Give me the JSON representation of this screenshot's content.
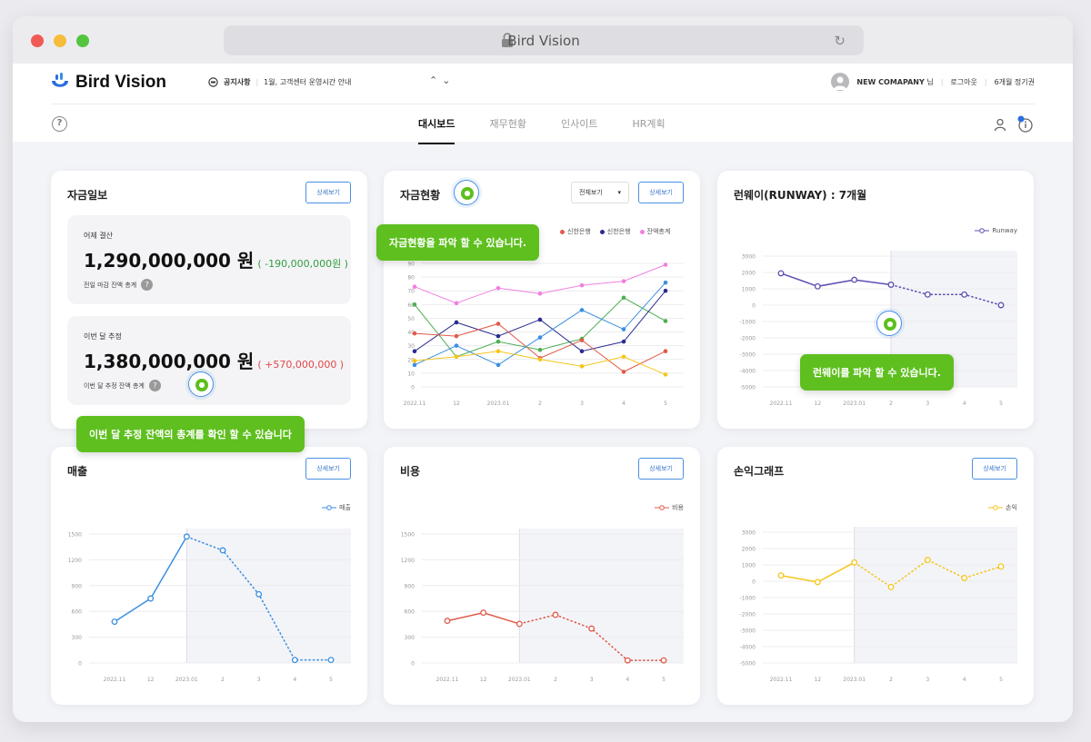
{
  "browser": {
    "url_title": "Bird Vision"
  },
  "header": {
    "logo": "Bird Vision",
    "notice_label": "공지사항",
    "notice_text": "1월, 고객센터 운영시간 안내",
    "company": "NEW COMAPANY",
    "honorific": "님",
    "logout": "로그아웃",
    "subscription": "6개월 정기권"
  },
  "tabs": [
    {
      "label": "대시보드",
      "active": true
    },
    {
      "label": "재무현황",
      "active": false
    },
    {
      "label": "인사이트",
      "active": false
    },
    {
      "label": "HR계획",
      "active": false
    }
  ],
  "colors": {
    "accent": "#4a90e2",
    "tooltip": "#5ebf1e",
    "positive": "#2e9e3f",
    "negative": "#e04848"
  },
  "detail_label": "상세보기",
  "fund_report": {
    "title": "자금일보",
    "yesterday_label": "어제 결산",
    "yesterday_value": "1,290,000,000 원",
    "yesterday_diff": "( -190,000,000원 )",
    "yesterday_sub": "전일 마감 잔액 총계",
    "month_label": "이번 달 추정",
    "month_value": "1,380,000,000 원",
    "month_diff": "( +570,000,000 )",
    "month_sub": "이번 달 추정 잔액 총계",
    "tooltip": "이번 달 추정 잔액의 총계를 확인 할 수 있습니다"
  },
  "fund_status": {
    "title": "자금현황",
    "select": "전체보기",
    "tooltip": "자금현황을 파악 할 수 있습니다.",
    "legend": [
      "신한은행",
      "신한은행",
      "잔액총계"
    ]
  },
  "runway": {
    "title": "런웨이(RUNWAY) : 7개월",
    "legend": "Runway",
    "tooltip": "런웨이를 파악 할 수 있습니다."
  },
  "sales": {
    "title": "매출",
    "legend": "매출"
  },
  "cost": {
    "title": "비용",
    "legend": "비용"
  },
  "pl": {
    "title": "손익그래프",
    "legend": "손익"
  },
  "x_labels": [
    "2022.11",
    "12",
    "2023.01",
    "2",
    "3",
    "4",
    "5"
  ],
  "chart_data": [
    {
      "id": "fund_status",
      "type": "line",
      "x": [
        "2022.11",
        "12",
        "2023.01",
        "2",
        "3",
        "4",
        "5"
      ],
      "ylim": [
        0,
        100
      ],
      "yticks": [
        0,
        10,
        20,
        30,
        40,
        50,
        60,
        70,
        80,
        90
      ],
      "series": [
        {
          "name": "잔액총계",
          "color": "#f07fe0",
          "values": [
            73,
            61,
            72,
            68,
            74,
            77,
            89
          ]
        },
        {
          "color": "#4caf50",
          "values": [
            60,
            22,
            33,
            27,
            35,
            65,
            48
          ]
        },
        {
          "color": "#2b2b8f",
          "values": [
            26,
            47,
            37,
            49,
            26,
            33,
            70
          ]
        },
        {
          "color": "#e05a4a",
          "values": [
            39,
            37,
            46,
            21,
            34,
            11,
            26
          ]
        },
        {
          "color": "#3b8fe0",
          "values": [
            16,
            30,
            16,
            36,
            56,
            42,
            76
          ]
        },
        {
          "color": "#f5c518",
          "values": [
            19,
            22,
            26,
            20,
            15,
            22,
            9
          ]
        }
      ]
    },
    {
      "id": "runway",
      "type": "line",
      "x": [
        "2022.11",
        "12",
        "2023.01",
        "2",
        "3",
        "4",
        "5"
      ],
      "ylim": [
        -5000,
        3000
      ],
      "yticks": [
        3000,
        2000,
        1000,
        0,
        -1000,
        -2000,
        -3000,
        -4000,
        -5000
      ],
      "forecast_from_index": 3,
      "series": [
        {
          "name": "Runway",
          "color": "#5a4fb3",
          "values": [
            1950,
            1150,
            1550,
            1250,
            650,
            650,
            0
          ]
        }
      ]
    },
    {
      "id": "sales",
      "type": "line",
      "x": [
        "2022.11",
        "12",
        "2023.01",
        "2",
        "3",
        "4",
        "5"
      ],
      "ylim": [
        0,
        1500
      ],
      "yticks": [
        1500,
        1200,
        900,
        600,
        300,
        0
      ],
      "forecast_from_index": 2,
      "series": [
        {
          "name": "매출",
          "color": "#3b8fe0",
          "values": [
            480,
            750,
            1470,
            1310,
            800,
            35,
            35
          ]
        }
      ]
    },
    {
      "id": "cost",
      "type": "line",
      "x": [
        "2022.11",
        "12",
        "2023.01",
        "2",
        "3",
        "4",
        "5"
      ],
      "ylim": [
        0,
        1500
      ],
      "yticks": [
        1500,
        1200,
        900,
        600,
        300,
        0
      ],
      "forecast_from_index": 2,
      "series": [
        {
          "name": "비용",
          "color": "#e05a4a",
          "values": [
            490,
            585,
            455,
            560,
            400,
            30,
            30
          ]
        }
      ]
    },
    {
      "id": "pl",
      "type": "line",
      "x": [
        "2022.11",
        "12",
        "2023.01",
        "2",
        "3",
        "4",
        "5"
      ],
      "ylim": [
        -5000,
        3000
      ],
      "yticks": [
        3000,
        2000,
        1000,
        0,
        -1000,
        -2000,
        -3000,
        -4000,
        -5000
      ],
      "forecast_from_index": 2,
      "series": [
        {
          "name": "손익",
          "color": "#f5c518",
          "values": [
            350,
            -50,
            1150,
            -350,
            1300,
            200,
            900
          ]
        }
      ]
    }
  ]
}
